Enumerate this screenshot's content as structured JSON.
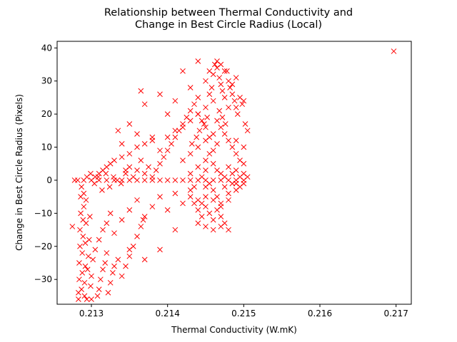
{
  "chart_data": {
    "type": "scatter",
    "title_line1": "Relationship between Thermal Conductivity and",
    "title_line2": "Change in Best Circle Radius (Local)",
    "xlabel": "Thermal Conductivity (W.mK)",
    "ylabel": "Change in Best Circle Radius (Pixels)",
    "xlim": [
      0.21255,
      0.2172
    ],
    "ylim": [
      -37.5,
      42
    ],
    "xticks": [
      0.213,
      0.214,
      0.215,
      0.216,
      0.217
    ],
    "xtick_labels": [
      "0.213",
      "0.214",
      "0.215",
      "0.216",
      "0.217"
    ],
    "yticks": [
      -30,
      -20,
      -10,
      0,
      10,
      20,
      30,
      40
    ],
    "ytick_labels": [
      "−30",
      "−20",
      "−10",
      "0",
      "10",
      "20",
      "30",
      "40"
    ],
    "grid": false,
    "marker": "x",
    "marker_color": "#ff0000",
    "series": [
      {
        "points": [
          [
            0.21283,
            -36
          ],
          [
            0.21283,
            -34
          ],
          [
            0.21284,
            -30
          ],
          [
            0.21284,
            -25
          ],
          [
            0.21285,
            -20
          ],
          [
            0.21285,
            -15
          ],
          [
            0.21286,
            -10
          ],
          [
            0.21286,
            -5
          ],
          [
            0.21287,
            -2
          ],
          [
            0.21287,
            -33
          ],
          [
            0.21288,
            -28
          ],
          [
            0.21288,
            -22
          ],
          [
            0.21289,
            -17
          ],
          [
            0.21289,
            -12
          ],
          [
            0.2129,
            -8
          ],
          [
            0.2129,
            -4
          ],
          [
            0.21291,
            -35
          ],
          [
            0.21291,
            -31
          ],
          [
            0.21292,
            -26
          ],
          [
            0.21292,
            -19
          ],
          [
            0.21293,
            -13
          ],
          [
            0.21293,
            -6
          ],
          [
            0.21294,
            -36
          ],
          [
            0.21295,
            -27
          ],
          [
            0.21296,
            -23
          ],
          [
            0.21297,
            -18
          ],
          [
            0.21298,
            -11
          ],
          [
            0.21299,
            -32
          ],
          [
            0.213,
            -36
          ],
          [
            0.213,
            -29
          ],
          [
            0.21302,
            -24
          ],
          [
            0.21305,
            -21
          ],
          [
            0.21308,
            -35
          ],
          [
            0.2131,
            -33
          ],
          [
            0.21312,
            -30
          ],
          [
            0.21315,
            -27
          ],
          [
            0.21318,
            -25
          ],
          [
            0.2132,
            -22
          ],
          [
            0.21322,
            -34
          ],
          [
            0.21325,
            -31
          ],
          [
            0.21328,
            -28
          ],
          [
            0.2133,
            -26
          ],
          [
            0.21335,
            -24
          ],
          [
            0.2134,
            -29
          ],
          [
            0.21345,
            -26
          ],
          [
            0.2135,
            -23
          ],
          [
            0.21355,
            -20
          ],
          [
            0.2136,
            -17
          ],
          [
            0.21365,
            -14
          ],
          [
            0.21368,
            -12
          ],
          [
            0.2131,
            -18
          ],
          [
            0.21315,
            -15
          ],
          [
            0.2132,
            -13
          ],
          [
            0.21325,
            -10
          ],
          [
            0.2133,
            -16
          ],
          [
            0.2134,
            -12
          ],
          [
            0.2135,
            -9
          ],
          [
            0.2136,
            -6
          ],
          [
            0.2137,
            -11
          ],
          [
            0.2138,
            -8
          ],
          [
            0.2139,
            -5
          ],
          [
            0.214,
            -9
          ],
          [
            0.2141,
            -4
          ],
          [
            0.2142,
            -7
          ],
          [
            0.2143,
            -3
          ],
          [
            0.2144,
            -6
          ],
          [
            0.2145,
            -2
          ],
          [
            0.21275,
            -14
          ],
          [
            0.21278,
            0
          ],
          [
            0.21282,
            0
          ],
          [
            0.2129,
            0
          ],
          [
            0.213,
            0
          ],
          [
            0.2131,
            0
          ],
          [
            0.2132,
            0
          ],
          [
            0.2133,
            0
          ],
          [
            0.2134,
            0
          ],
          [
            0.2135,
            0
          ],
          [
            0.2136,
            0
          ],
          [
            0.2137,
            0
          ],
          [
            0.2138,
            0
          ],
          [
            0.2139,
            0
          ],
          [
            0.214,
            0
          ],
          [
            0.2141,
            0
          ],
          [
            0.2142,
            0
          ],
          [
            0.2143,
            0
          ],
          [
            0.2144,
            0
          ],
          [
            0.2145,
            0
          ],
          [
            0.2146,
            0
          ],
          [
            0.2147,
            0
          ],
          [
            0.2148,
            0
          ],
          [
            0.2149,
            0
          ],
          [
            0.215,
            0
          ],
          [
            0.21305,
            1
          ],
          [
            0.2131,
            2
          ],
          [
            0.21315,
            3
          ],
          [
            0.2132,
            4
          ],
          [
            0.21325,
            5
          ],
          [
            0.2133,
            6
          ],
          [
            0.2134,
            7
          ],
          [
            0.2135,
            8
          ],
          [
            0.21345,
            3
          ],
          [
            0.2136,
            10
          ],
          [
            0.2137,
            11
          ],
          [
            0.2138,
            12
          ],
          [
            0.2139,
            9
          ],
          [
            0.214,
            13
          ],
          [
            0.2141,
            15
          ],
          [
            0.2142,
            16
          ],
          [
            0.2143,
            18
          ],
          [
            0.2144,
            20
          ],
          [
            0.2145,
            22
          ],
          [
            0.21335,
            15
          ],
          [
            0.2134,
            11
          ],
          [
            0.2135,
            17
          ],
          [
            0.2136,
            14
          ],
          [
            0.21365,
            27
          ],
          [
            0.2137,
            23
          ],
          [
            0.2138,
            13
          ],
          [
            0.2139,
            26
          ],
          [
            0.214,
            20
          ],
          [
            0.2141,
            24
          ],
          [
            0.2142,
            33
          ],
          [
            0.2143,
            28
          ],
          [
            0.2144,
            36
          ],
          [
            0.2145,
            30
          ],
          [
            0.21455,
            33
          ],
          [
            0.2146,
            32
          ],
          [
            0.21462,
            35
          ],
          [
            0.21465,
            34
          ],
          [
            0.21468,
            31
          ],
          [
            0.2147,
            29
          ],
          [
            0.21472,
            27
          ],
          [
            0.21475,
            25
          ],
          [
            0.21478,
            33
          ],
          [
            0.2148,
            30
          ],
          [
            0.21482,
            28
          ],
          [
            0.21485,
            26
          ],
          [
            0.21488,
            24
          ],
          [
            0.2149,
            22
          ],
          [
            0.21492,
            20
          ],
          [
            0.21495,
            25
          ],
          [
            0.21498,
            23
          ],
          [
            0.215,
            24
          ],
          [
            0.21502,
            17
          ],
          [
            0.21505,
            15
          ],
          [
            0.21465,
            18
          ],
          [
            0.2147,
            16
          ],
          [
            0.21475,
            14
          ],
          [
            0.2148,
            12
          ],
          [
            0.21485,
            10
          ],
          [
            0.2149,
            8
          ],
          [
            0.21495,
            6
          ],
          [
            0.2146,
            14
          ],
          [
            0.2145,
            12
          ],
          [
            0.2144,
            10
          ],
          [
            0.2143,
            8
          ],
          [
            0.2142,
            6
          ],
          [
            0.2146,
            5
          ],
          [
            0.21465,
            3
          ],
          [
            0.2147,
            2
          ],
          [
            0.21475,
            1
          ],
          [
            0.2148,
            4
          ],
          [
            0.21485,
            2
          ],
          [
            0.2149,
            3
          ],
          [
            0.21495,
            1
          ],
          [
            0.215,
            5
          ],
          [
            0.21455,
            -1
          ],
          [
            0.2146,
            -3
          ],
          [
            0.21465,
            -5
          ],
          [
            0.2147,
            -7
          ],
          [
            0.21475,
            -2
          ],
          [
            0.2148,
            -4
          ],
          [
            0.21485,
            -1
          ],
          [
            0.2149,
            -3
          ],
          [
            0.21495,
            -2
          ],
          [
            0.2145,
            -8
          ],
          [
            0.21455,
            -10
          ],
          [
            0.2146,
            -12
          ],
          [
            0.21465,
            -9
          ],
          [
            0.2147,
            -11
          ],
          [
            0.21475,
            -13
          ],
          [
            0.2148,
            -15
          ],
          [
            0.2145,
            -14
          ],
          [
            0.21445,
            -11
          ],
          [
            0.2144,
            -9
          ],
          [
            0.21435,
            -7
          ],
          [
            0.2143,
            -5
          ],
          [
            0.2143,
            2
          ],
          [
            0.2144,
            4
          ],
          [
            0.2145,
            6
          ],
          [
            0.21455,
            8
          ],
          [
            0.21445,
            1
          ],
          [
            0.21435,
            -2
          ],
          [
            0.2145,
            3
          ],
          [
            0.2146,
            -6
          ],
          [
            0.2147,
            -8
          ],
          [
            0.2148,
            -6
          ],
          [
            0.2149,
            -1
          ],
          [
            0.215,
            2
          ],
          [
            0.215,
            -1
          ],
          [
            0.21505,
            1
          ],
          [
            0.2149,
            12
          ],
          [
            0.215,
            10
          ],
          [
            0.21468,
            21
          ],
          [
            0.21472,
            19
          ],
          [
            0.21476,
            17
          ],
          [
            0.2148,
            22
          ],
          [
            0.21485,
            29
          ],
          [
            0.2149,
            31
          ],
          [
            0.21455,
            26
          ],
          [
            0.2146,
            24
          ],
          [
            0.21458,
            28
          ],
          [
            0.21452,
            19
          ],
          [
            0.21448,
            17
          ],
          [
            0.21442,
            15
          ],
          [
            0.21438,
            13
          ],
          [
            0.21432,
            11
          ],
          [
            0.2147,
            35
          ],
          [
            0.21465,
            36
          ],
          [
            0.21475,
            33
          ],
          [
            0.2144,
            25
          ],
          [
            0.21435,
            23
          ],
          [
            0.2143,
            21
          ],
          [
            0.21425,
            19
          ],
          [
            0.2142,
            17
          ],
          [
            0.21415,
            15
          ],
          [
            0.2141,
            13
          ],
          [
            0.21405,
            11
          ],
          [
            0.214,
            9
          ],
          [
            0.21395,
            7
          ],
          [
            0.2139,
            5
          ],
          [
            0.21385,
            3
          ],
          [
            0.2138,
            1
          ],
          [
            0.21375,
            4
          ],
          [
            0.2137,
            2
          ],
          [
            0.21365,
            6
          ],
          [
            0.2136,
            3
          ],
          [
            0.21355,
            1
          ],
          [
            0.2135,
            4
          ],
          [
            0.21345,
            2
          ],
          [
            0.21339,
            -1
          ],
          [
            0.21334,
            0
          ],
          [
            0.21329,
            1
          ],
          [
            0.21324,
            -2
          ],
          [
            0.21319,
            2
          ],
          [
            0.21314,
            -3
          ],
          [
            0.21309,
            1
          ],
          [
            0.21304,
            -1
          ],
          [
            0.21299,
            2
          ],
          [
            0.21294,
            1
          ],
          [
            0.2145,
            -5
          ],
          [
            0.21445,
            -7
          ],
          [
            0.2144,
            -13
          ],
          [
            0.2146,
            -15
          ],
          [
            0.2147,
            -14
          ],
          [
            0.2141,
            -15
          ],
          [
            0.2139,
            -21
          ],
          [
            0.2137,
            -24
          ],
          [
            0.2135,
            -21
          ],
          [
            0.2146,
            9
          ],
          [
            0.21465,
            11
          ],
          [
            0.21455,
            13
          ],
          [
            0.2145,
            16
          ],
          [
            0.21445,
            18
          ],
          [
            0.2144,
            20
          ],
          [
            0.21697,
            39
          ]
        ]
      }
    ]
  }
}
